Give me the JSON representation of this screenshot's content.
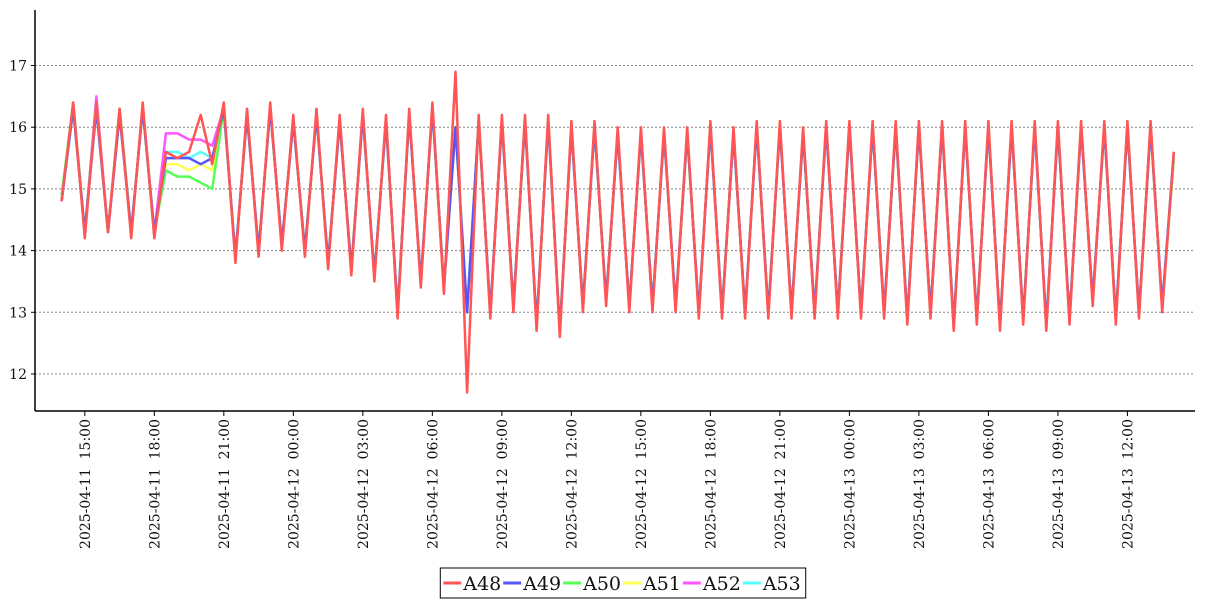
{
  "chart_data": {
    "type": "line",
    "x": [
      "2025-04-11 14:00",
      "2025-04-11 14:30",
      "2025-04-11 15:00",
      "2025-04-11 15:30",
      "2025-04-11 16:00",
      "2025-04-11 16:30",
      "2025-04-11 17:00",
      "2025-04-11 17:30",
      "2025-04-11 18:00",
      "2025-04-11 18:30",
      "2025-04-11 19:00",
      "2025-04-11 19:30",
      "2025-04-11 20:00",
      "2025-04-11 20:30",
      "2025-04-11 21:00",
      "2025-04-11 21:30",
      "2025-04-11 22:00",
      "2025-04-11 22:30",
      "2025-04-11 23:00",
      "2025-04-11 23:30",
      "2025-04-12 00:00",
      "2025-04-12 00:30",
      "2025-04-12 01:00",
      "2025-04-12 01:30",
      "2025-04-12 02:00",
      "2025-04-12 02:30",
      "2025-04-12 03:00",
      "2025-04-12 03:30",
      "2025-04-12 04:00",
      "2025-04-12 04:30",
      "2025-04-12 05:00",
      "2025-04-12 05:30",
      "2025-04-12 06:00",
      "2025-04-12 06:30",
      "2025-04-12 07:00",
      "2025-04-12 07:30",
      "2025-04-12 08:00",
      "2025-04-12 08:30",
      "2025-04-12 09:00",
      "2025-04-12 09:30",
      "2025-04-12 10:00",
      "2025-04-12 10:30",
      "2025-04-12 11:00",
      "2025-04-12 11:30",
      "2025-04-12 12:00",
      "2025-04-12 12:30",
      "2025-04-12 13:00",
      "2025-04-12 13:30",
      "2025-04-12 14:00",
      "2025-04-12 14:30",
      "2025-04-12 15:00",
      "2025-04-12 15:30",
      "2025-04-12 16:00",
      "2025-04-12 16:30",
      "2025-04-12 17:00",
      "2025-04-12 17:30",
      "2025-04-12 18:00",
      "2025-04-12 18:30",
      "2025-04-12 19:00",
      "2025-04-12 19:30",
      "2025-04-12 20:00",
      "2025-04-12 20:30",
      "2025-04-12 21:00",
      "2025-04-12 21:30",
      "2025-04-12 22:00",
      "2025-04-12 22:30",
      "2025-04-12 23:00",
      "2025-04-12 23:30",
      "2025-04-13 00:00",
      "2025-04-13 00:30",
      "2025-04-13 01:00",
      "2025-04-13 01:30",
      "2025-04-13 02:00",
      "2025-04-13 02:30",
      "2025-04-13 03:00",
      "2025-04-13 03:30",
      "2025-04-13 04:00",
      "2025-04-13 04:30",
      "2025-04-13 05:00",
      "2025-04-13 05:30",
      "2025-04-13 06:00",
      "2025-04-13 06:30",
      "2025-04-13 07:00",
      "2025-04-13 07:30",
      "2025-04-13 08:00",
      "2025-04-13 08:30",
      "2025-04-13 09:00",
      "2025-04-13 09:30",
      "2025-04-13 10:00",
      "2025-04-13 10:30",
      "2025-04-13 11:00",
      "2025-04-13 11:30",
      "2025-04-13 12:00",
      "2025-04-13 12:30",
      "2025-04-13 13:00",
      "2025-04-13 13:30",
      "2025-04-13 14:00"
    ],
    "series": [
      {
        "name": "A48",
        "color": "#ff5555",
        "values": [
          14.8,
          16.4,
          14.2,
          16.4,
          14.3,
          16.3,
          14.2,
          16.4,
          14.2,
          15.6,
          15.5,
          15.6,
          16.2,
          15.4,
          16.4,
          13.8,
          16.3,
          13.9,
          16.4,
          14.0,
          16.2,
          13.9,
          16.3,
          13.7,
          16.2,
          13.6,
          16.3,
          13.5,
          16.2,
          12.9,
          16.3,
          13.4,
          16.4,
          13.3,
          16.9,
          11.7,
          16.2,
          12.9,
          16.2,
          13.0,
          16.2,
          12.7,
          16.2,
          12.6,
          16.1,
          13.0,
          16.1,
          13.1,
          16.0,
          13.0,
          16.0,
          13.0,
          16.0,
          13.0,
          16.0,
          12.9,
          16.1,
          12.9,
          16.0,
          12.9,
          16.1,
          12.9,
          16.1,
          12.9,
          16.0,
          12.9,
          16.1,
          12.9,
          16.1,
          12.9,
          16.1,
          12.9,
          16.1,
          12.8,
          16.1,
          12.9,
          16.1,
          12.7,
          16.1,
          12.8,
          16.1,
          12.7,
          16.1,
          12.8,
          16.1,
          12.7,
          16.1,
          12.8,
          16.1,
          13.1,
          16.1,
          12.8,
          16.1,
          12.9,
          16.1,
          13.0,
          15.6
        ]
      },
      {
        "name": "A49",
        "color": "#5555ff",
        "values": [
          14.8,
          16.3,
          14.3,
          16.3,
          14.3,
          16.2,
          14.3,
          16.3,
          14.3,
          15.5,
          15.5,
          15.5,
          15.4,
          15.5,
          16.3,
          13.9,
          16.2,
          14.0,
          16.3,
          14.1,
          16.1,
          14.0,
          16.2,
          13.8,
          16.1,
          13.7,
          16.2,
          13.6,
          16.1,
          13.0,
          16.2,
          13.5,
          16.3,
          13.4,
          16.0,
          13.0,
          16.1,
          13.0,
          16.1,
          13.1,
          16.1,
          12.8,
          16.1,
          12.7,
          16.0,
          13.1,
          16.0,
          13.2,
          15.9,
          13.1,
          15.9,
          13.1,
          15.9,
          13.1,
          15.9,
          13.0,
          16.0,
          13.0,
          15.9,
          13.0,
          16.0,
          13.0,
          16.0,
          13.0,
          15.9,
          13.0,
          16.0,
          13.0,
          16.0,
          13.0,
          16.0,
          13.0,
          16.0,
          12.9,
          16.0,
          13.0,
          16.0,
          12.8,
          16.0,
          12.9,
          16.0,
          12.8,
          16.0,
          12.9,
          16.0,
          12.8,
          16.0,
          12.9,
          16.0,
          13.2,
          16.0,
          12.9,
          16.0,
          13.0,
          16.0,
          13.1,
          15.6
        ]
      },
      {
        "name": "A50",
        "color": "#55ff55",
        "values": [
          14.9,
          16.4,
          14.3,
          16.4,
          14.3,
          16.3,
          14.3,
          16.3,
          14.3,
          15.3,
          15.2,
          15.2,
          15.1,
          15.0,
          16.3,
          13.9,
          16.2,
          14.0,
          16.3,
          14.1,
          16.1,
          14.0,
          16.2,
          13.8,
          16.1,
          13.7,
          16.2,
          13.6,
          16.1,
          13.0,
          16.2,
          13.5,
          16.3,
          13.4,
          16.0,
          13.0,
          16.1,
          13.0,
          16.1,
          13.1,
          16.1,
          12.8,
          16.1,
          12.7,
          16.0,
          13.1,
          16.0,
          13.2,
          15.9,
          13.1,
          15.9,
          13.1,
          15.9,
          13.1,
          15.9,
          13.0,
          16.0,
          13.0,
          15.9,
          13.0,
          16.0,
          13.0,
          16.0,
          13.0,
          15.9,
          13.0,
          16.0,
          13.0,
          16.0,
          13.0,
          16.0,
          13.0,
          16.0,
          12.9,
          16.0,
          13.0,
          16.0,
          12.8,
          16.0,
          12.9,
          16.0,
          12.8,
          16.0,
          12.9,
          16.0,
          12.8,
          16.0,
          12.9,
          16.0,
          13.2,
          16.0,
          12.9,
          16.0,
          13.0,
          16.0,
          13.1,
          15.5
        ]
      },
      {
        "name": "A51",
        "color": "#ffff55",
        "values": [
          14.8,
          16.3,
          14.3,
          16.3,
          14.3,
          16.2,
          14.3,
          16.3,
          14.3,
          15.4,
          15.4,
          15.3,
          15.4,
          15.3,
          16.3,
          13.9,
          16.2,
          14.0,
          16.3,
          14.1,
          16.1,
          14.0,
          16.2,
          13.8,
          16.1,
          13.7,
          16.2,
          13.6,
          16.1,
          13.0,
          16.2,
          13.5,
          16.3,
          13.4,
          16.0,
          13.0,
          16.1,
          13.0,
          16.1,
          13.1,
          16.1,
          12.8,
          16.1,
          12.7,
          16.0,
          13.1,
          16.0,
          13.2,
          15.9,
          13.1,
          15.9,
          13.1,
          15.9,
          13.1,
          15.9,
          13.0,
          16.0,
          13.0,
          15.9,
          13.0,
          16.0,
          13.0,
          16.0,
          13.0,
          15.9,
          13.0,
          16.0,
          13.0,
          16.0,
          13.0,
          16.0,
          13.0,
          16.0,
          12.9,
          16.0,
          13.0,
          16.0,
          12.8,
          16.0,
          12.9,
          16.0,
          12.8,
          16.0,
          12.9,
          16.0,
          12.8,
          16.0,
          12.9,
          16.0,
          13.2,
          16.0,
          12.9,
          16.0,
          13.0,
          16.0,
          13.1,
          15.5
        ]
      },
      {
        "name": "A52",
        "color": "#ff55ff",
        "values": [
          14.8,
          16.4,
          14.3,
          16.5,
          14.3,
          16.3,
          14.3,
          16.3,
          14.3,
          15.9,
          15.9,
          15.8,
          15.8,
          15.7,
          16.3,
          13.9,
          16.2,
          14.0,
          16.3,
          14.1,
          16.1,
          14.0,
          16.2,
          13.8,
          16.1,
          13.7,
          16.2,
          13.6,
          16.1,
          13.0,
          16.2,
          13.5,
          16.3,
          13.4,
          16.0,
          13.0,
          16.1,
          13.0,
          16.1,
          13.1,
          16.1,
          12.8,
          16.1,
          12.7,
          16.0,
          13.1,
          16.0,
          13.2,
          15.9,
          13.1,
          15.9,
          13.1,
          15.9,
          13.1,
          15.9,
          13.0,
          16.0,
          13.0,
          15.9,
          13.0,
          16.0,
          13.0,
          16.0,
          13.0,
          15.9,
          13.0,
          16.0,
          13.0,
          16.0,
          13.0,
          16.0,
          13.0,
          16.0,
          12.9,
          16.0,
          13.0,
          16.0,
          12.8,
          16.0,
          12.9,
          16.0,
          12.8,
          16.0,
          12.9,
          16.0,
          12.8,
          16.0,
          12.9,
          16.0,
          13.2,
          16.0,
          12.9,
          16.0,
          13.0,
          16.0,
          13.1,
          15.5
        ]
      },
      {
        "name": "A53",
        "color": "#55ffff",
        "values": [
          14.8,
          16.3,
          14.3,
          16.3,
          14.3,
          16.2,
          14.3,
          16.3,
          14.3,
          15.6,
          15.6,
          15.5,
          15.6,
          15.5,
          16.3,
          13.9,
          16.2,
          14.0,
          16.3,
          14.1,
          16.1,
          14.0,
          16.2,
          13.8,
          16.1,
          13.7,
          16.2,
          13.6,
          16.1,
          13.0,
          16.2,
          13.5,
          16.3,
          13.4,
          16.0,
          13.0,
          16.1,
          13.0,
          16.1,
          13.1,
          16.1,
          12.8,
          16.1,
          12.7,
          16.0,
          13.1,
          16.0,
          13.2,
          15.9,
          13.1,
          15.9,
          13.1,
          15.9,
          13.1,
          15.9,
          13.0,
          16.0,
          13.0,
          15.9,
          13.0,
          16.0,
          13.0,
          16.0,
          13.0,
          15.9,
          13.0,
          16.0,
          13.0,
          16.0,
          13.0,
          16.0,
          13.0,
          16.0,
          12.9,
          16.0,
          13.0,
          16.0,
          12.8,
          16.0,
          12.9,
          16.0,
          12.8,
          16.0,
          12.9,
          16.0,
          12.8,
          16.0,
          12.9,
          16.0,
          13.2,
          16.0,
          12.9,
          16.0,
          13.0,
          16.0,
          13.1,
          15.5
        ]
      }
    ],
    "xlim": [
      "2025-04-11 12:51",
      "2025-04-13 14:55"
    ],
    "xticks": [
      {
        "value": "2025-04-11 15:00",
        "label": "2025-04-11  15:00"
      },
      {
        "value": "2025-04-11 18:00",
        "label": "2025-04-11  18:00"
      },
      {
        "value": "2025-04-11 21:00",
        "label": "2025-04-11  21:00"
      },
      {
        "value": "2025-04-12 00:00",
        "label": "2025-04-12  00:00"
      },
      {
        "value": "2025-04-12 03:00",
        "label": "2025-04-12  03:00"
      },
      {
        "value": "2025-04-12 06:00",
        "label": "2025-04-12  06:00"
      },
      {
        "value": "2025-04-12 09:00",
        "label": "2025-04-12  09:00"
      },
      {
        "value": "2025-04-12 12:00",
        "label": "2025-04-12  12:00"
      },
      {
        "value": "2025-04-12 15:00",
        "label": "2025-04-12  15:00"
      },
      {
        "value": "2025-04-12 18:00",
        "label": "2025-04-12  18:00"
      },
      {
        "value": "2025-04-12 21:00",
        "label": "2025-04-12  21:00"
      },
      {
        "value": "2025-04-13 00:00",
        "label": "2025-04-13  00:00"
      },
      {
        "value": "2025-04-13 03:00",
        "label": "2025-04-13  03:00"
      },
      {
        "value": "2025-04-13 06:00",
        "label": "2025-04-13  06:00"
      },
      {
        "value": "2025-04-13 09:00",
        "label": "2025-04-13  09:00"
      },
      {
        "value": "2025-04-13 12:00",
        "label": "2025-04-13  12:00"
      }
    ],
    "ylim": [
      11.4,
      17.9
    ],
    "yticks": [
      12,
      13,
      14,
      15,
      16,
      17
    ],
    "grid": true,
    "legend": "bottom"
  }
}
